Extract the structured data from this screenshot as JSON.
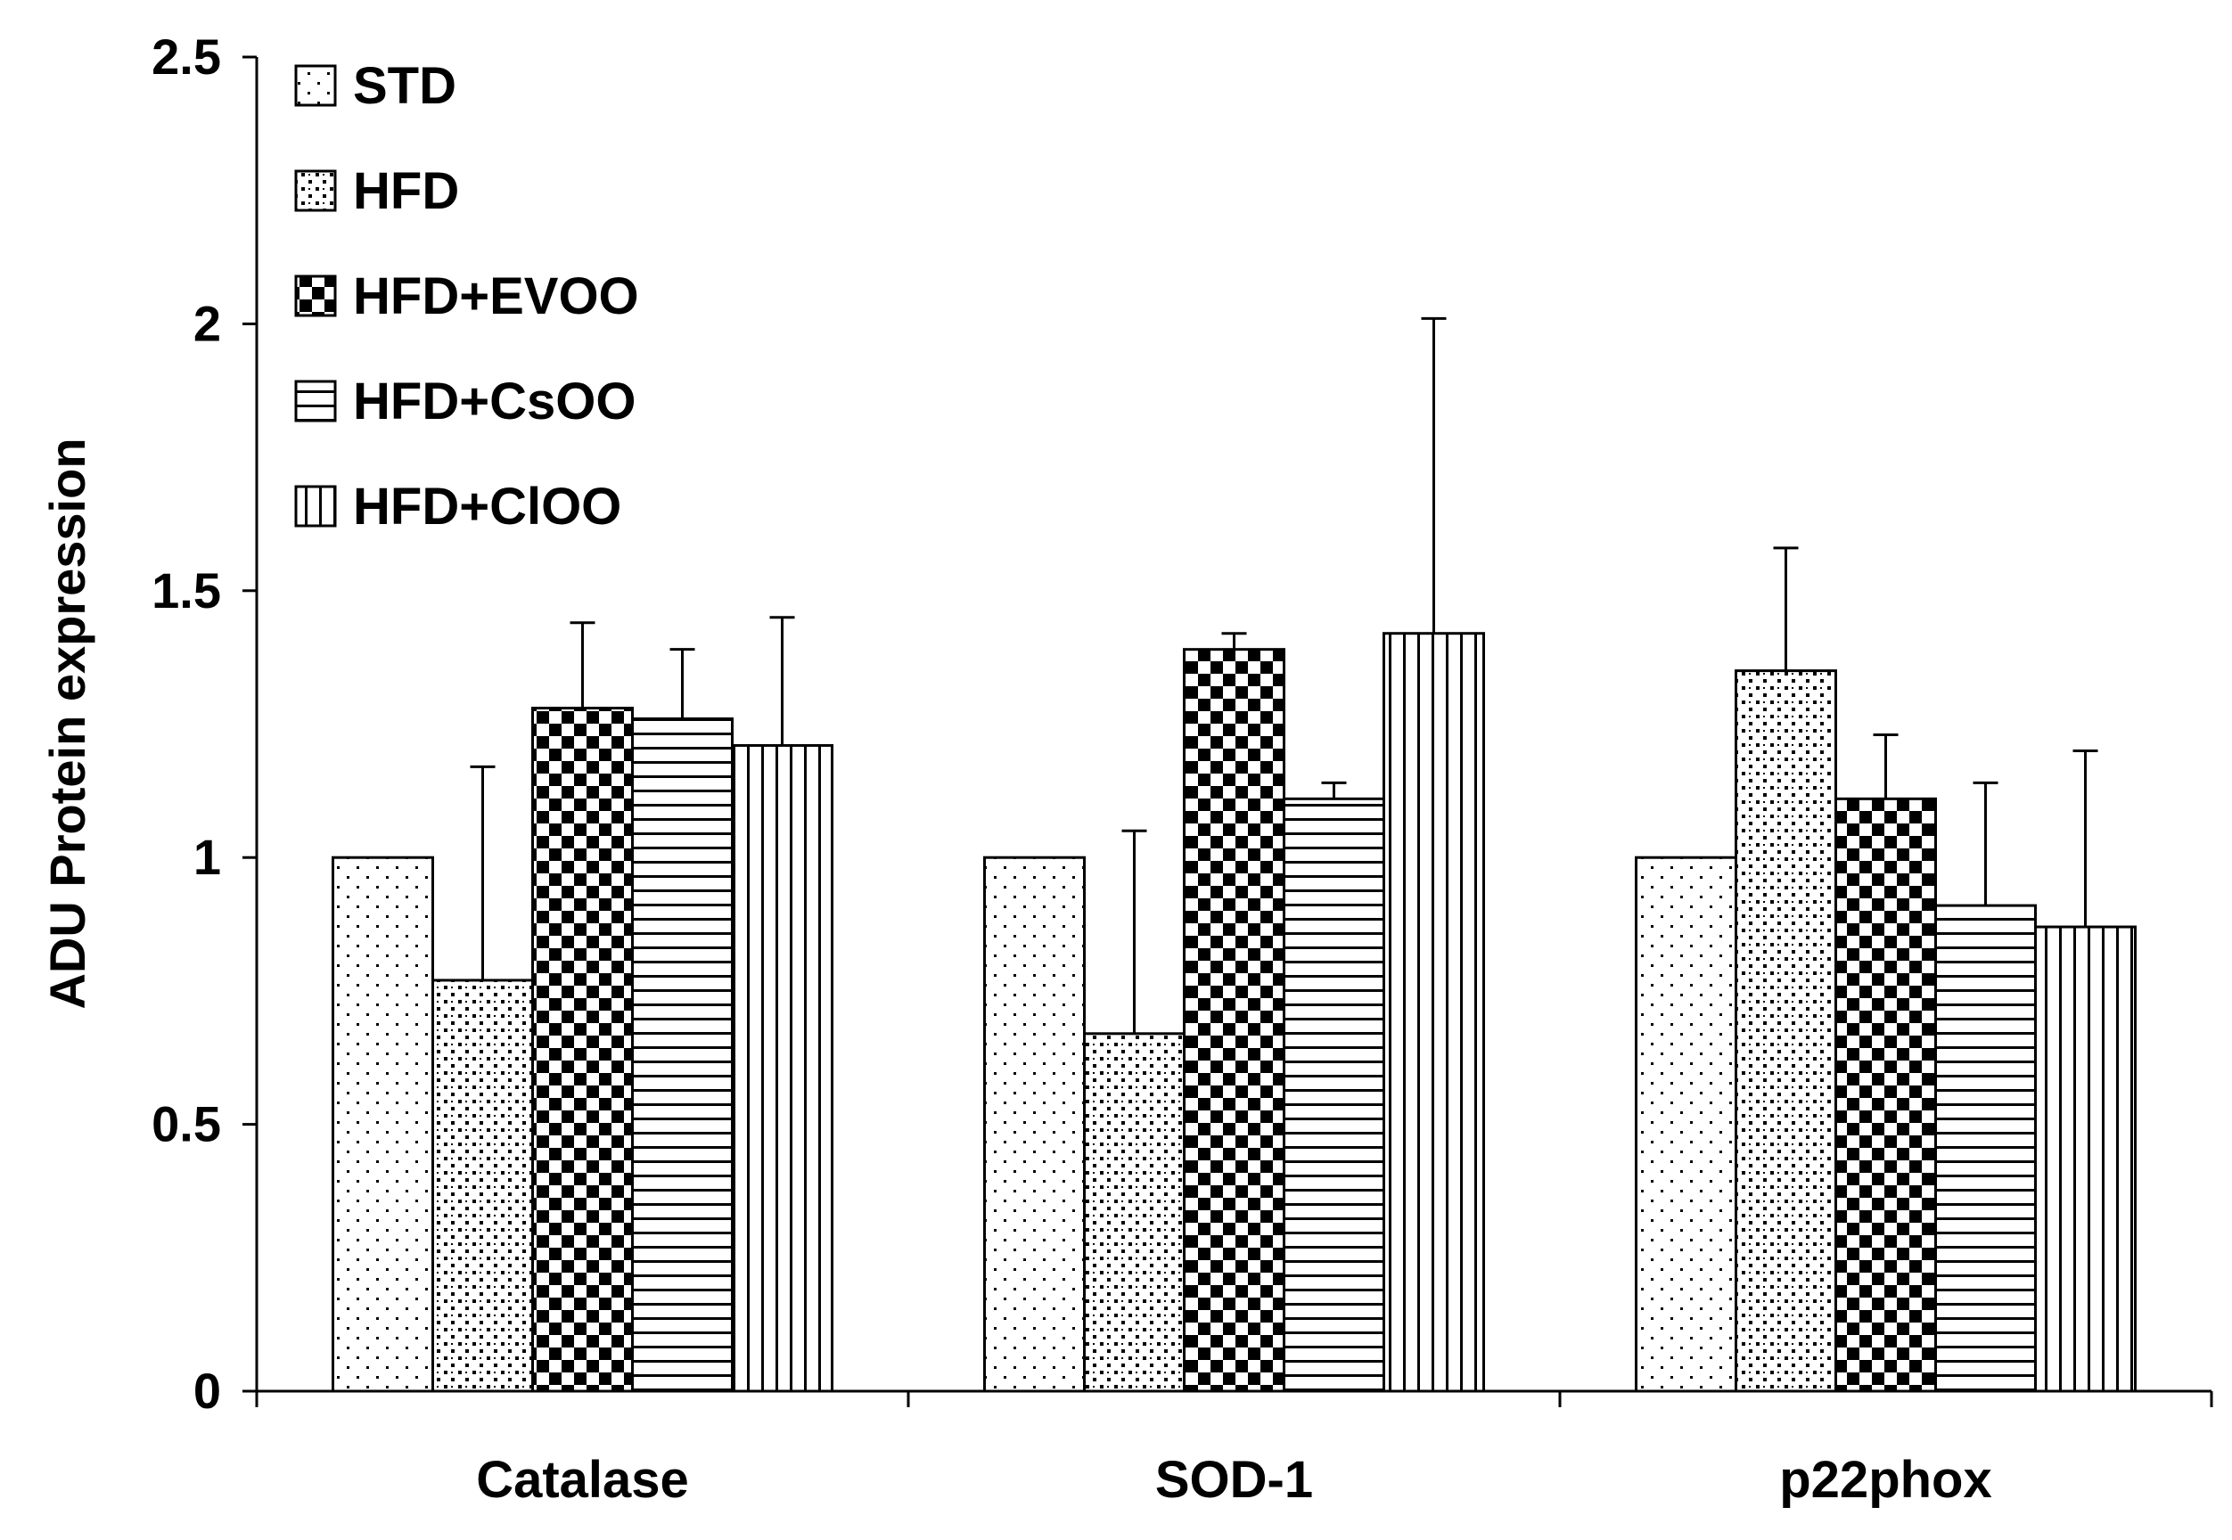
{
  "chart_data": {
    "type": "bar",
    "title": "",
    "xlabel": "",
    "ylabel": "ADU Protein expression",
    "ylim": [
      0,
      2.5
    ],
    "yticks": [
      0,
      0.5,
      1,
      1.5,
      2,
      2.5
    ],
    "ytick_labels": [
      "0",
      "0.5",
      "1",
      "1.5",
      "2",
      "2.5"
    ],
    "categories": [
      "Catalase",
      "SOD-1",
      "p22phox"
    ],
    "legend_position": "top-left",
    "grid": false,
    "series": [
      {
        "name": "STD",
        "pattern": "sparse-dots",
        "values": [
          1.0,
          1.0,
          1.0
        ],
        "errors": [
          0,
          0,
          0
        ]
      },
      {
        "name": "HFD",
        "pattern": "dense-dots",
        "values": [
          0.77,
          0.67,
          1.35
        ],
        "errors": [
          0.4,
          0.38,
          0.23
        ]
      },
      {
        "name": "HFD+EVOO",
        "pattern": "checkerboard",
        "values": [
          1.28,
          1.39,
          1.11
        ],
        "errors": [
          0.16,
          0.03,
          0.12
        ]
      },
      {
        "name": "HFD+CsOO",
        "pattern": "horizontal-lines",
        "values": [
          1.26,
          1.11,
          0.91
        ],
        "errors": [
          0.13,
          0.03,
          0.23
        ]
      },
      {
        "name": "HFD+ClOO",
        "pattern": "vertical-lines",
        "values": [
          1.21,
          1.42,
          0.87
        ],
        "errors": [
          0.24,
          0.59,
          0.33
        ]
      }
    ],
    "colors": {
      "bar_stroke": "#000000",
      "fill": "#ffffff",
      "ink": "#000000"
    }
  }
}
